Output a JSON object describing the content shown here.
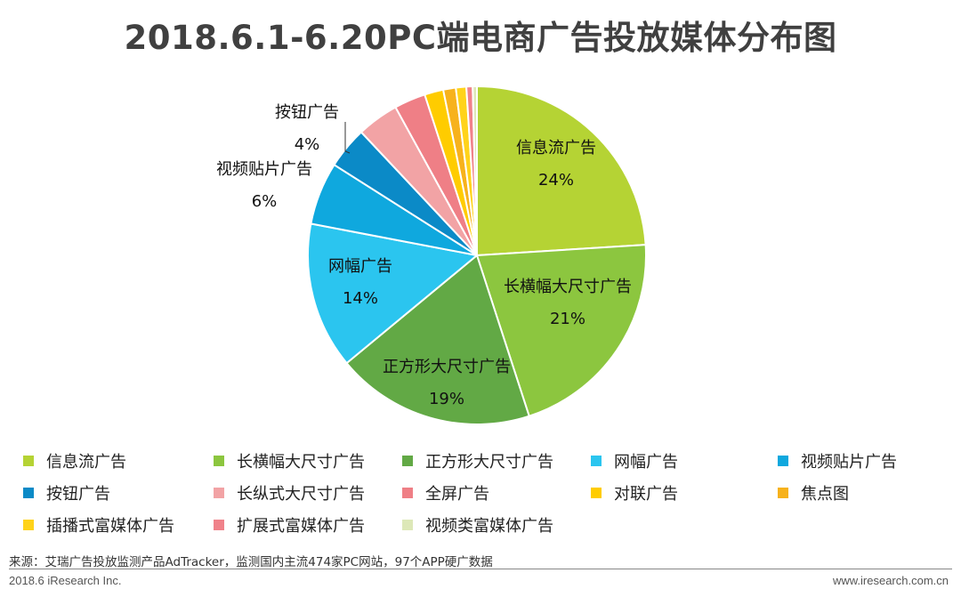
{
  "title": "2018.6.1-6.20PC端电商广告投放媒体分布图",
  "chart_data": {
    "type": "pie",
    "title": "2018.6.1-6.20PC端电商广告投放媒体分布图",
    "series": [
      {
        "name": "信息流广告",
        "value": 24,
        "label": "24%",
        "color": "#b5d334"
      },
      {
        "name": "长横幅大尺寸广告",
        "value": 21,
        "label": "21%",
        "color": "#8cc63f"
      },
      {
        "name": "正方形大尺寸广告",
        "value": 19,
        "label": "19%",
        "color": "#62a945"
      },
      {
        "name": "网幅广告",
        "value": 14,
        "label": "14%",
        "color": "#2bc5ef"
      },
      {
        "name": "视频贴片广告",
        "value": 6,
        "label": "6%",
        "color": "#0fa8de"
      },
      {
        "name": "按钮广告",
        "value": 4,
        "label": "4%",
        "color": "#0b8ac7"
      },
      {
        "name": "长纵式大尺寸广告",
        "value": 4,
        "label": "",
        "color": "#f2a3a5"
      },
      {
        "name": "全屏广告",
        "value": 3,
        "label": "",
        "color": "#ef7f86"
      },
      {
        "name": "对联广告",
        "value": 1.8,
        "label": "",
        "color": "#ffcc00"
      },
      {
        "name": "焦点图",
        "value": 1.2,
        "label": "",
        "color": "#f7b21c"
      },
      {
        "name": "插播式富媒体广告",
        "value": 1,
        "label": "",
        "color": "#ffd31a"
      },
      {
        "name": "扩展式富媒体广告",
        "value": 0.6,
        "label": "",
        "color": "#f0828a"
      },
      {
        "name": "视频类富媒体广告",
        "value": 0.4,
        "label": "",
        "color": "#dde8b8"
      }
    ]
  },
  "source": "来源：艾瑞广告投放监测产品AdTracker，监测国内主流474家PC网站，97个APP硬广数据",
  "footer": {
    "copyright": "2018.6 iResearch Inc.",
    "url": "www.iresearch.com.cn"
  }
}
